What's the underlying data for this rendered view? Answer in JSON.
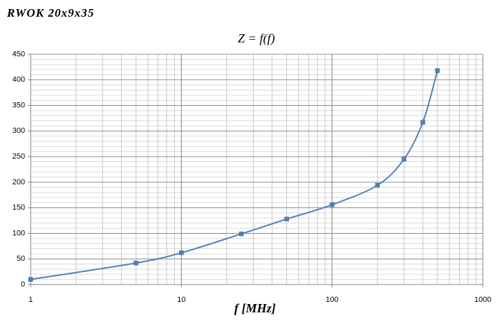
{
  "chart_data": {
    "type": "line",
    "label": "RWOK 20x9x35",
    "title": "Z = f(f)",
    "x_label": "f [MHz]",
    "x": [
      1,
      5,
      10,
      25,
      50,
      100,
      200,
      300,
      400,
      500
    ],
    "values": [
      10,
      42,
      62,
      99,
      128,
      156,
      194,
      245,
      317,
      418
    ],
    "color": "#4f81bd",
    "xscale": "log",
    "xlim": [
      1,
      1000
    ],
    "xticks": [
      1,
      10,
      100,
      1000
    ],
    "ylim": [
      0,
      450
    ],
    "yticks": [
      0,
      50,
      100,
      150,
      200,
      250,
      300,
      350,
      400,
      450
    ],
    "grid": true,
    "minor_grid": true
  }
}
